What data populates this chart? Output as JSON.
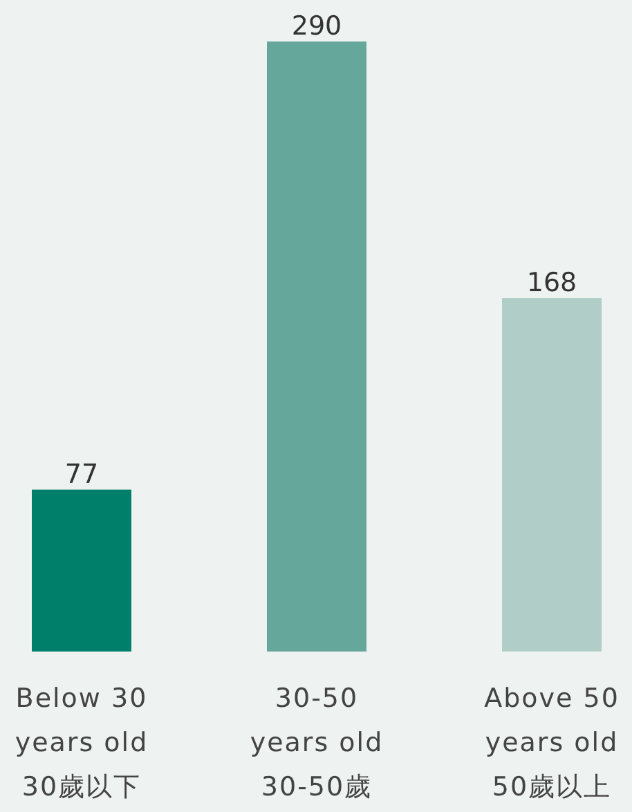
{
  "chart_data": {
    "type": "bar",
    "categories": [
      "Below 30\nyears old\n30歲以下",
      "30-50\nyears old\n30-50歲",
      "Above 50\nyears old\n50歲以上"
    ],
    "values": [
      77,
      290,
      168
    ],
    "colors": [
      "#00806a",
      "#66a79c",
      "#b0cdc8"
    ],
    "data_labels": true
  }
}
